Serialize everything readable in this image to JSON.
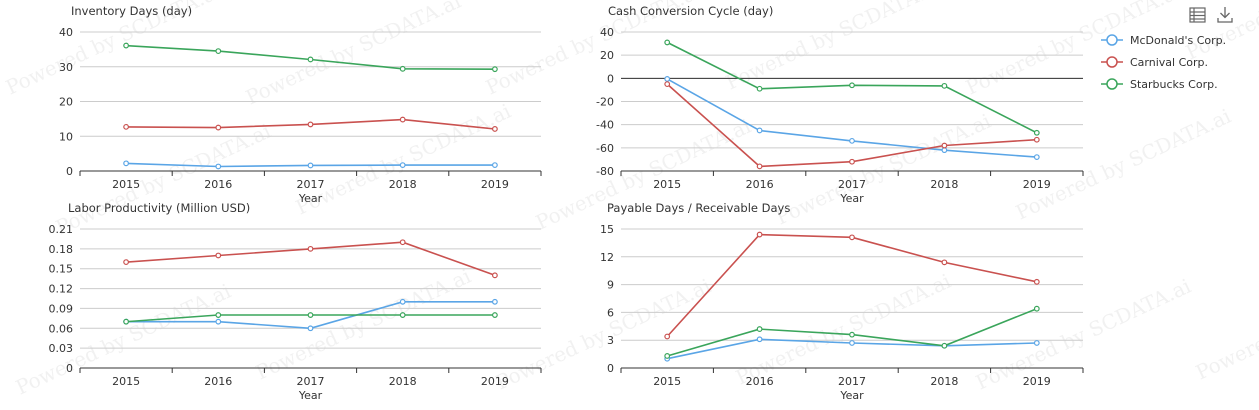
{
  "toolbar": {
    "data_view_icon": "table-icon",
    "download_icon": "download-icon"
  },
  "legend": {
    "items": [
      {
        "label": "McDonald's Corp.",
        "color": "#5aa5e6"
      },
      {
        "label": "Carnival Corp.",
        "color": "#c9514f"
      },
      {
        "label": "Starbucks Corp.",
        "color": "#3aa55b"
      }
    ]
  },
  "watermark": "Powered by SCDATA.ai",
  "chart_data": [
    {
      "type": "line",
      "title": "Inventory Days (day)",
      "xlabel": "",
      "categories": [
        "2015",
        "2016",
        "2017",
        "2018",
        "2019"
      ],
      "ylim": [
        0,
        40
      ],
      "yticks": [
        0,
        10,
        20,
        30,
        40
      ],
      "ytick_labels": [
        "0",
        "10",
        "20",
        "30",
        "40"
      ],
      "series": [
        {
          "name": "McDonald's Corp.",
          "values": [
            2.2,
            1.3,
            1.6,
            1.7,
            1.7
          ]
        },
        {
          "name": "Carnival Corp.",
          "values": [
            12.7,
            12.5,
            13.4,
            14.8,
            12.1
          ]
        },
        {
          "name": "Starbucks Corp.",
          "values": [
            36.1,
            34.5,
            32.1,
            29.4,
            29.3
          ]
        }
      ]
    },
    {
      "type": "line",
      "title": "Cash Conversion Cycle (day)",
      "xlabel": "Year",
      "categories": [
        "2015",
        "2016",
        "2017",
        "2018",
        "2019"
      ],
      "ylim": [
        -80,
        40
      ],
      "yticks": [
        -80,
        -60,
        -40,
        -20,
        0,
        20,
        40
      ],
      "ytick_labels": [
        "-80",
        "-60",
        "-40",
        "-20",
        "0",
        "20",
        "40"
      ],
      "series": [
        {
          "name": "McDonald's Corp.",
          "values": [
            -0.5,
            -45,
            -54,
            -62,
            -68
          ]
        },
        {
          "name": "Carnival Corp.",
          "values": [
            -5,
            -76,
            -72,
            -58,
            -53
          ]
        },
        {
          "name": "Starbucks Corp.",
          "values": [
            31,
            -9,
            -6,
            -6.5,
            -47
          ]
        }
      ]
    },
    {
      "type": "line",
      "title": "Labor Productivity (Million USD)",
      "xlabel": "Year",
      "categories": [
        "2015",
        "2016",
        "2017",
        "2018",
        "2019"
      ],
      "ylim": [
        0,
        0.21
      ],
      "yticks": [
        0,
        0.03,
        0.06,
        0.09,
        0.12,
        0.15,
        0.18,
        0.21
      ],
      "ytick_labels": [
        "0",
        "0.03",
        "0.06",
        "0.09",
        "0.12",
        "0.15",
        "0.18",
        "0.21"
      ],
      "series": [
        {
          "name": "McDonald's Corp.",
          "values": [
            0.07,
            0.07,
            0.06,
            0.1,
            0.1
          ]
        },
        {
          "name": "Carnival Corp.",
          "values": [
            0.16,
            0.17,
            0.18,
            0.19,
            0.14
          ]
        },
        {
          "name": "Starbucks Corp.",
          "values": [
            0.07,
            0.08,
            0.08,
            0.08,
            0.08
          ]
        }
      ]
    },
    {
      "type": "line",
      "title": "Payable Days / Receivable Days",
      "xlabel": "Year",
      "categories": [
        "2015",
        "2016",
        "2017",
        "2018",
        "2019"
      ],
      "ylim": [
        0,
        15
      ],
      "yticks": [
        0,
        3,
        6,
        9,
        12,
        15
      ],
      "ytick_labels": [
        "0",
        "3",
        "6",
        "9",
        "12",
        "15"
      ],
      "series": [
        {
          "name": "McDonald's Corp.",
          "values": [
            1.0,
            3.1,
            2.7,
            2.4,
            2.7
          ]
        },
        {
          "name": "Carnival Corp.",
          "values": [
            3.4,
            14.4,
            14.1,
            11.4,
            9.3
          ]
        },
        {
          "name": "Starbucks Corp.",
          "values": [
            1.3,
            4.2,
            3.6,
            2.4,
            6.4
          ]
        }
      ]
    }
  ]
}
